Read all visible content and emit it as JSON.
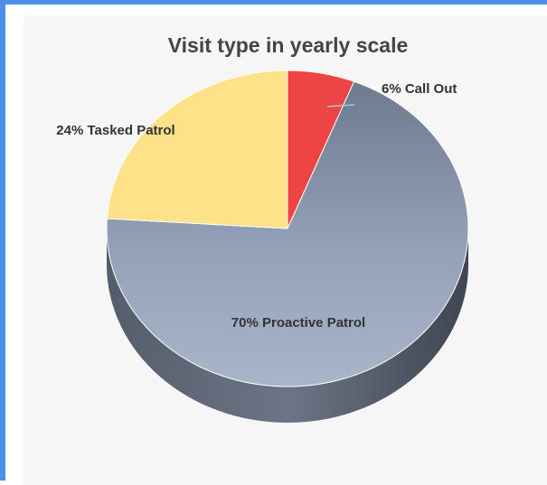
{
  "chart_data": {
    "type": "pie",
    "title": "Visit type in yearly scale",
    "slices": [
      {
        "label": "6% Call Out",
        "value": 6,
        "color": "#ee4444"
      },
      {
        "label": "70% Proactive Patrol",
        "value": 70,
        "color": "#94a1b8"
      },
      {
        "label": "24% Tasked Patrol",
        "value": 24,
        "color": "#fde28a"
      }
    ]
  }
}
